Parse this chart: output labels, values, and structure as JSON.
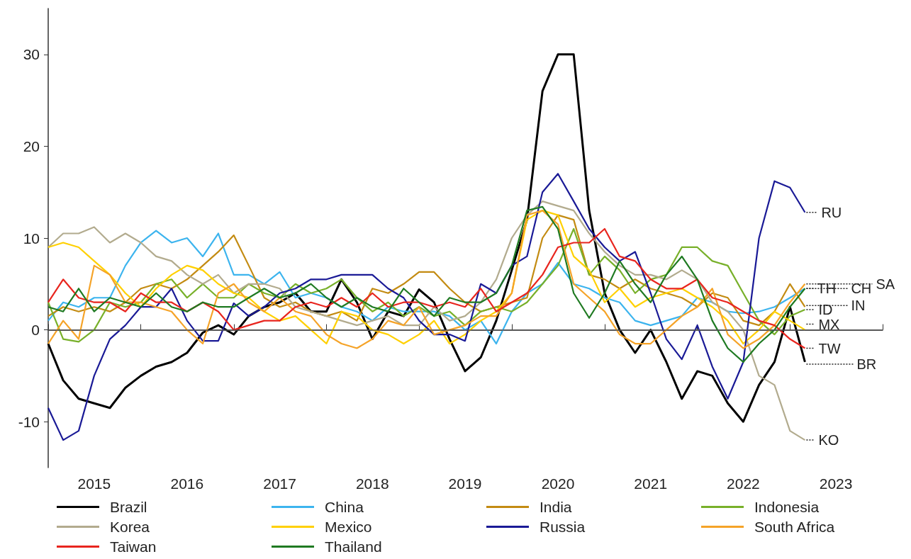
{
  "chart_data": {
    "type": "line",
    "x": [
      "2015-01",
      "2015-03",
      "2015-05",
      "2015-07",
      "2015-09",
      "2015-11",
      "2016-01",
      "2016-03",
      "2016-05",
      "2016-07",
      "2016-09",
      "2016-11",
      "2017-01",
      "2017-03",
      "2017-05",
      "2017-07",
      "2017-09",
      "2017-11",
      "2018-01",
      "2018-03",
      "2018-05",
      "2018-07",
      "2018-09",
      "2018-11",
      "2019-01",
      "2019-03",
      "2019-05",
      "2019-07",
      "2019-09",
      "2019-11",
      "2020-01",
      "2020-03",
      "2020-05",
      "2020-07",
      "2020-09",
      "2020-11",
      "2021-01",
      "2021-03",
      "2021-05",
      "2021-07",
      "2021-09",
      "2021-11",
      "2022-01",
      "2022-03",
      "2022-05",
      "2022-07",
      "2022-09",
      "2022-11",
      "2023-01",
      "2023-03"
    ],
    "series": [
      {
        "name": "Brazil",
        "color": "#000000",
        "values": [
          -1.5,
          -5.5,
          -7.5,
          -8,
          -8.5,
          -6.3,
          -5,
          -4,
          -3.5,
          -2.5,
          -0.3,
          0.5,
          -0.5,
          1.5,
          2.5,
          3,
          4,
          2,
          2,
          5.5,
          3,
          -1,
          2,
          1.5,
          4.4,
          3,
          -1,
          -4.5,
          -3,
          1,
          6.5,
          12,
          26,
          30,
          30,
          13,
          4,
          0,
          -2.5,
          0,
          -3.5,
          -7.5,
          -4.5,
          -5,
          -8,
          -10,
          -6,
          -3.5,
          2.5,
          -3.5
        ]
      },
      {
        "name": "China",
        "color": "#3cb4ee",
        "values": [
          1,
          3,
          2.5,
          3.5,
          3.5,
          7,
          9.5,
          10.8,
          9.5,
          10,
          8,
          10.5,
          6,
          6,
          5,
          6.3,
          3.5,
          4,
          3.5,
          2.5,
          2,
          1,
          2.5,
          2,
          2,
          2,
          1.5,
          0,
          1,
          -1.5,
          2,
          4,
          5,
          7.3,
          5,
          4.5,
          3.5,
          3,
          1,
          0.5,
          1,
          1.5,
          3.5,
          3,
          2,
          1.8,
          2,
          2.5,
          3.5,
          4.5
        ]
      },
      {
        "name": "India",
        "color": "#c38b12",
        "values": [
          1.5,
          2.5,
          2,
          2.5,
          2,
          3,
          4.5,
          5,
          4.5,
          5.5,
          7,
          8.5,
          10.3,
          7,
          3.5,
          2.5,
          3,
          2,
          1.5,
          2,
          1,
          4.5,
          4,
          5,
          6.3,
          6.3,
          4.5,
          3,
          2,
          2.5,
          3,
          3.5,
          10,
          12.5,
          12,
          6,
          5.5,
          4.5,
          5.5,
          4.5,
          4,
          3.5,
          2.5,
          4,
          3.5,
          1,
          0.5,
          2,
          5,
          2.5
        ]
      },
      {
        "name": "Indonesia",
        "color": "#78b02a",
        "values": [
          3,
          -1,
          -1.3,
          0,
          3,
          2.5,
          3,
          5,
          5.5,
          3.5,
          5,
          3.5,
          3.5,
          5,
          4,
          3.5,
          5,
          4,
          4.5,
          5.5,
          3.5,
          2,
          3,
          1.5,
          2.5,
          1.5,
          2,
          0.5,
          2,
          2.5,
          2,
          3,
          5,
          7,
          11,
          6,
          8,
          6.5,
          4,
          5.5,
          6,
          9,
          9,
          7.5,
          7,
          4,
          1,
          -0.5,
          1.5,
          2.2
        ]
      },
      {
        "name": "Korea",
        "color": "#b2ab8e",
        "values": [
          9,
          10.5,
          10.5,
          11.2,
          9.5,
          10.5,
          9.5,
          8,
          7.5,
          6,
          5,
          6,
          4,
          5,
          5,
          4.5,
          2.5,
          2,
          1.5,
          1,
          0.5,
          1,
          1.5,
          0.5,
          0.5,
          2.5,
          1,
          1.5,
          3,
          5.5,
          10,
          12.5,
          14,
          13.5,
          13,
          10.5,
          8.5,
          7,
          6,
          6,
          5.5,
          6.5,
          5.5,
          3,
          2,
          0,
          -5,
          -6,
          -11,
          -12
        ]
      },
      {
        "name": "Mexico",
        "color": "#ffd000",
        "values": [
          9,
          9.5,
          9,
          7.5,
          6,
          4,
          2.5,
          4.5,
          6,
          7,
          6.5,
          5,
          4,
          3.5,
          2,
          1,
          1.5,
          0,
          -1.5,
          2,
          1.5,
          0,
          -0.5,
          -1.5,
          -0.5,
          1,
          -1.5,
          -0.5,
          1,
          2,
          4,
          12,
          13,
          12.5,
          8,
          6.5,
          3,
          4.5,
          2.5,
          3.5,
          4,
          4.5,
          3.5,
          2.5,
          1,
          -1.5,
          0,
          2,
          1,
          0
        ]
      },
      {
        "name": "Russia",
        "color": "#1a1a96",
        "values": [
          -8.5,
          -12,
          -11,
          -5,
          -1,
          0.5,
          2.5,
          2.5,
          4.5,
          1,
          -1.2,
          -1.2,
          2.9,
          1.5,
          2.5,
          4,
          4.5,
          5.5,
          5.5,
          6,
          6,
          6,
          4.5,
          3.5,
          1,
          -0.5,
          -0.5,
          -1.2,
          5,
          4,
          7,
          8,
          15,
          17,
          14,
          11,
          9,
          7.5,
          8.5,
          4,
          -1,
          -3.2,
          0.5,
          -4,
          -7.5,
          -3.5,
          10,
          16.2,
          15.5,
          12.8
        ]
      },
      {
        "name": "South Africa",
        "color": "#f5a328",
        "values": [
          -1.5,
          1,
          -1,
          7,
          6,
          3,
          3,
          2.5,
          2,
          0,
          -1.5,
          4,
          5,
          3,
          2,
          3.5,
          2,
          1.5,
          -0.5,
          -1.5,
          -2,
          -1,
          1,
          0.5,
          2.5,
          -0.5,
          0,
          0.5,
          1.5,
          1.5,
          4,
          12.5,
          13,
          11.5,
          5,
          3.5,
          2,
          -0.5,
          -1.5,
          -1.5,
          0,
          1.5,
          2.5,
          4.5,
          -0.5,
          -2,
          -1,
          0.5,
          3,
          5
        ]
      },
      {
        "name": "Taiwan",
        "color": "#e8251e",
        "values": [
          3,
          5.5,
          3.5,
          3,
          3,
          2,
          4,
          3,
          3,
          2,
          3,
          2,
          0,
          0.5,
          1,
          1,
          2.5,
          3,
          2.5,
          3.5,
          2.5,
          4,
          2.5,
          3,
          3,
          2.5,
          3,
          2.5,
          4.5,
          2,
          3,
          4,
          6,
          9,
          9.5,
          9.5,
          11,
          8,
          7.5,
          5.5,
          4.5,
          4.5,
          5.5,
          3.5,
          3,
          2,
          1,
          0.5,
          -1,
          -2
        ]
      },
      {
        "name": "Thailand",
        "color": "#1f7a22",
        "values": [
          2.5,
          2,
          4.5,
          2,
          3.5,
          3,
          2.5,
          4,
          2.5,
          2,
          3,
          2.5,
          2.5,
          3.5,
          4.5,
          3.5,
          4,
          5,
          3.5,
          2.5,
          3.5,
          2.5,
          2,
          4.5,
          3,
          1.5,
          3.5,
          3,
          3,
          4,
          7,
          13,
          13.4,
          11,
          4,
          1.3,
          4,
          7.5,
          5,
          3,
          6,
          8,
          5.5,
          1,
          -2,
          -3.5,
          -1.5,
          0,
          2.5,
          4.5
        ]
      }
    ],
    "xlim": [
      "2015-01",
      "2024-01"
    ],
    "xticks": [
      {
        "value": "2015-01",
        "label": null
      },
      {
        "value": "2016-01",
        "label": null
      },
      {
        "value": "2017-01",
        "label": null
      },
      {
        "value": "2018-01",
        "label": null
      },
      {
        "value": "2019-01",
        "label": null
      },
      {
        "value": "2020-01",
        "label": null
      },
      {
        "value": "2021-01",
        "label": null
      },
      {
        "value": "2022-01",
        "label": null
      },
      {
        "value": "2023-01",
        "label": null
      },
      {
        "value": "2024-01",
        "label": null
      },
      {
        "value": "2015-07",
        "label": "2015"
      },
      {
        "value": "2016-07",
        "label": "2016"
      },
      {
        "value": "2017-07",
        "label": "2017"
      },
      {
        "value": "2018-07",
        "label": "2018"
      },
      {
        "value": "2019-07",
        "label": "2019"
      },
      {
        "value": "2020-07",
        "label": "2020"
      },
      {
        "value": "2021-07",
        "label": "2021"
      },
      {
        "value": "2022-07",
        "label": "2022"
      },
      {
        "value": "2023-07",
        "label": "2023"
      }
    ],
    "ylim": [
      -15,
      35
    ],
    "yticks": [
      -10,
      0,
      10,
      20,
      30
    ],
    "ref_lines": [
      {
        "axis": "y",
        "value": 0,
        "color": "#555555"
      }
    ],
    "annotations": [
      {
        "text": "RU",
        "x": "2023-03",
        "y": 12.8
      },
      {
        "text": "SA",
        "x": "2023-03",
        "y": 5
      },
      {
        "text": "TH",
        "x": "2023-03",
        "y": 4.5
      },
      {
        "text": "CH",
        "x": "2023-03",
        "y": 4.5
      },
      {
        "text": "IN",
        "x": "2023-03",
        "y": 2.5
      },
      {
        "text": "ID",
        "x": "2023-03",
        "y": 2.2
      },
      {
        "text": "MX",
        "x": "2023-03",
        "y": 0
      },
      {
        "text": "TW",
        "x": "2023-03",
        "y": -2
      },
      {
        "text": "BR",
        "x": "2023-03",
        "y": -3.5
      },
      {
        "text": "KO",
        "x": "2023-03",
        "y": -12
      }
    ],
    "marker": "none",
    "legend": "bottom"
  }
}
